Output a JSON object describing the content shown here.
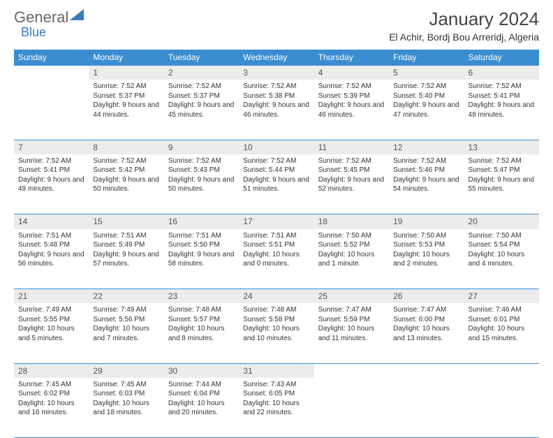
{
  "logo": {
    "text1": "General",
    "text2": "Blue"
  },
  "title": "January 2024",
  "location": "El Achir, Bordj Bou Arreridj, Algeria",
  "columns": [
    "Sunday",
    "Monday",
    "Tuesday",
    "Wednesday",
    "Thursday",
    "Friday",
    "Saturday"
  ],
  "colors": {
    "header_bg": "#3a8dd0",
    "header_text": "#ffffff",
    "daynum_bg": "#ececec",
    "rule": "#3a8dd0",
    "text": "#333333",
    "logo_gray": "#666666",
    "logo_blue": "#3a7bbf"
  },
  "fonts": {
    "month_title_size": 26,
    "location_size": 14,
    "th_size": 12,
    "daynum_size": 12,
    "cell_size": 10
  },
  "weeks": [
    [
      null,
      {
        "n": "1",
        "sr": "7:52 AM",
        "ss": "5:37 PM",
        "dl": "9 hours and 44 minutes."
      },
      {
        "n": "2",
        "sr": "7:52 AM",
        "ss": "5:37 PM",
        "dl": "9 hours and 45 minutes."
      },
      {
        "n": "3",
        "sr": "7:52 AM",
        "ss": "5:38 PM",
        "dl": "9 hours and 46 minutes."
      },
      {
        "n": "4",
        "sr": "7:52 AM",
        "ss": "5:39 PM",
        "dl": "9 hours and 46 minutes."
      },
      {
        "n": "5",
        "sr": "7:52 AM",
        "ss": "5:40 PM",
        "dl": "9 hours and 47 minutes."
      },
      {
        "n": "6",
        "sr": "7:52 AM",
        "ss": "5:41 PM",
        "dl": "9 hours and 48 minutes."
      }
    ],
    [
      {
        "n": "7",
        "sr": "7:52 AM",
        "ss": "5:41 PM",
        "dl": "9 hours and 49 minutes."
      },
      {
        "n": "8",
        "sr": "7:52 AM",
        "ss": "5:42 PM",
        "dl": "9 hours and 50 minutes."
      },
      {
        "n": "9",
        "sr": "7:52 AM",
        "ss": "5:43 PM",
        "dl": "9 hours and 50 minutes."
      },
      {
        "n": "10",
        "sr": "7:52 AM",
        "ss": "5:44 PM",
        "dl": "9 hours and 51 minutes."
      },
      {
        "n": "11",
        "sr": "7:52 AM",
        "ss": "5:45 PM",
        "dl": "9 hours and 52 minutes."
      },
      {
        "n": "12",
        "sr": "7:52 AM",
        "ss": "5:46 PM",
        "dl": "9 hours and 54 minutes."
      },
      {
        "n": "13",
        "sr": "7:52 AM",
        "ss": "5:47 PM",
        "dl": "9 hours and 55 minutes."
      }
    ],
    [
      {
        "n": "14",
        "sr": "7:51 AM",
        "ss": "5:48 PM",
        "dl": "9 hours and 56 minutes."
      },
      {
        "n": "15",
        "sr": "7:51 AM",
        "ss": "5:49 PM",
        "dl": "9 hours and 57 minutes."
      },
      {
        "n": "16",
        "sr": "7:51 AM",
        "ss": "5:50 PM",
        "dl": "9 hours and 58 minutes."
      },
      {
        "n": "17",
        "sr": "7:51 AM",
        "ss": "5:51 PM",
        "dl": "10 hours and 0 minutes."
      },
      {
        "n": "18",
        "sr": "7:50 AM",
        "ss": "5:52 PM",
        "dl": "10 hours and 1 minute."
      },
      {
        "n": "19",
        "sr": "7:50 AM",
        "ss": "5:53 PM",
        "dl": "10 hours and 2 minutes."
      },
      {
        "n": "20",
        "sr": "7:50 AM",
        "ss": "5:54 PM",
        "dl": "10 hours and 4 minutes."
      }
    ],
    [
      {
        "n": "21",
        "sr": "7:49 AM",
        "ss": "5:55 PM",
        "dl": "10 hours and 5 minutes."
      },
      {
        "n": "22",
        "sr": "7:49 AM",
        "ss": "5:56 PM",
        "dl": "10 hours and 7 minutes."
      },
      {
        "n": "23",
        "sr": "7:48 AM",
        "ss": "5:57 PM",
        "dl": "10 hours and 8 minutes."
      },
      {
        "n": "24",
        "sr": "7:48 AM",
        "ss": "5:58 PM",
        "dl": "10 hours and 10 minutes."
      },
      {
        "n": "25",
        "sr": "7:47 AM",
        "ss": "5:59 PM",
        "dl": "10 hours and 11 minutes."
      },
      {
        "n": "26",
        "sr": "7:47 AM",
        "ss": "6:00 PM",
        "dl": "10 hours and 13 minutes."
      },
      {
        "n": "27",
        "sr": "7:46 AM",
        "ss": "6:01 PM",
        "dl": "10 hours and 15 minutes."
      }
    ],
    [
      {
        "n": "28",
        "sr": "7:45 AM",
        "ss": "6:02 PM",
        "dl": "10 hours and 16 minutes."
      },
      {
        "n": "29",
        "sr": "7:45 AM",
        "ss": "6:03 PM",
        "dl": "10 hours and 18 minutes."
      },
      {
        "n": "30",
        "sr": "7:44 AM",
        "ss": "6:04 PM",
        "dl": "10 hours and 20 minutes."
      },
      {
        "n": "31",
        "sr": "7:43 AM",
        "ss": "6:05 PM",
        "dl": "10 hours and 22 minutes."
      },
      null,
      null,
      null
    ]
  ],
  "labels": {
    "sunrise": "Sunrise:",
    "sunset": "Sunset:",
    "daylight": "Daylight:"
  }
}
